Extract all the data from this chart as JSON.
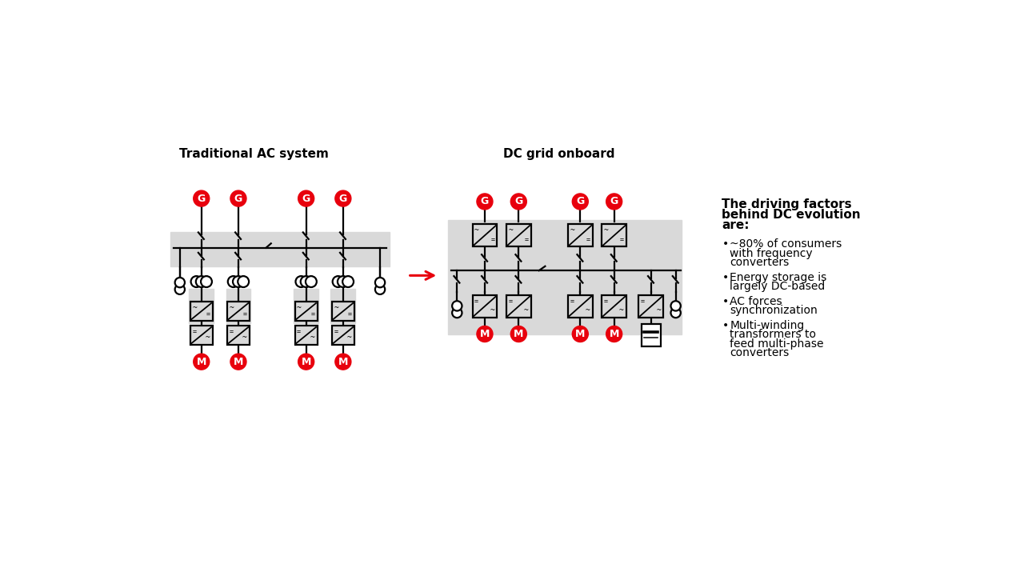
{
  "bg_color": "#ffffff",
  "ac_title": "Traditional AC system",
  "dc_title": "DC grid onboard",
  "red_color": "#e8000d",
  "gray_bg": "#d9d9d9",
  "arrow_color": "#e8000d",
  "text_color": "#000000",
  "bullet_title_lines": [
    "The driving factors",
    "behind DC evolution",
    "are:"
  ],
  "bullets": [
    [
      "~80% of consumers",
      "with frequency",
      "converters"
    ],
    [
      "Energy storage is",
      "largely DC-based"
    ],
    [
      "AC forces",
      "synchronization"
    ],
    [
      "Multi-winding",
      "transformers to",
      "feed multi-phase",
      "converters"
    ]
  ]
}
